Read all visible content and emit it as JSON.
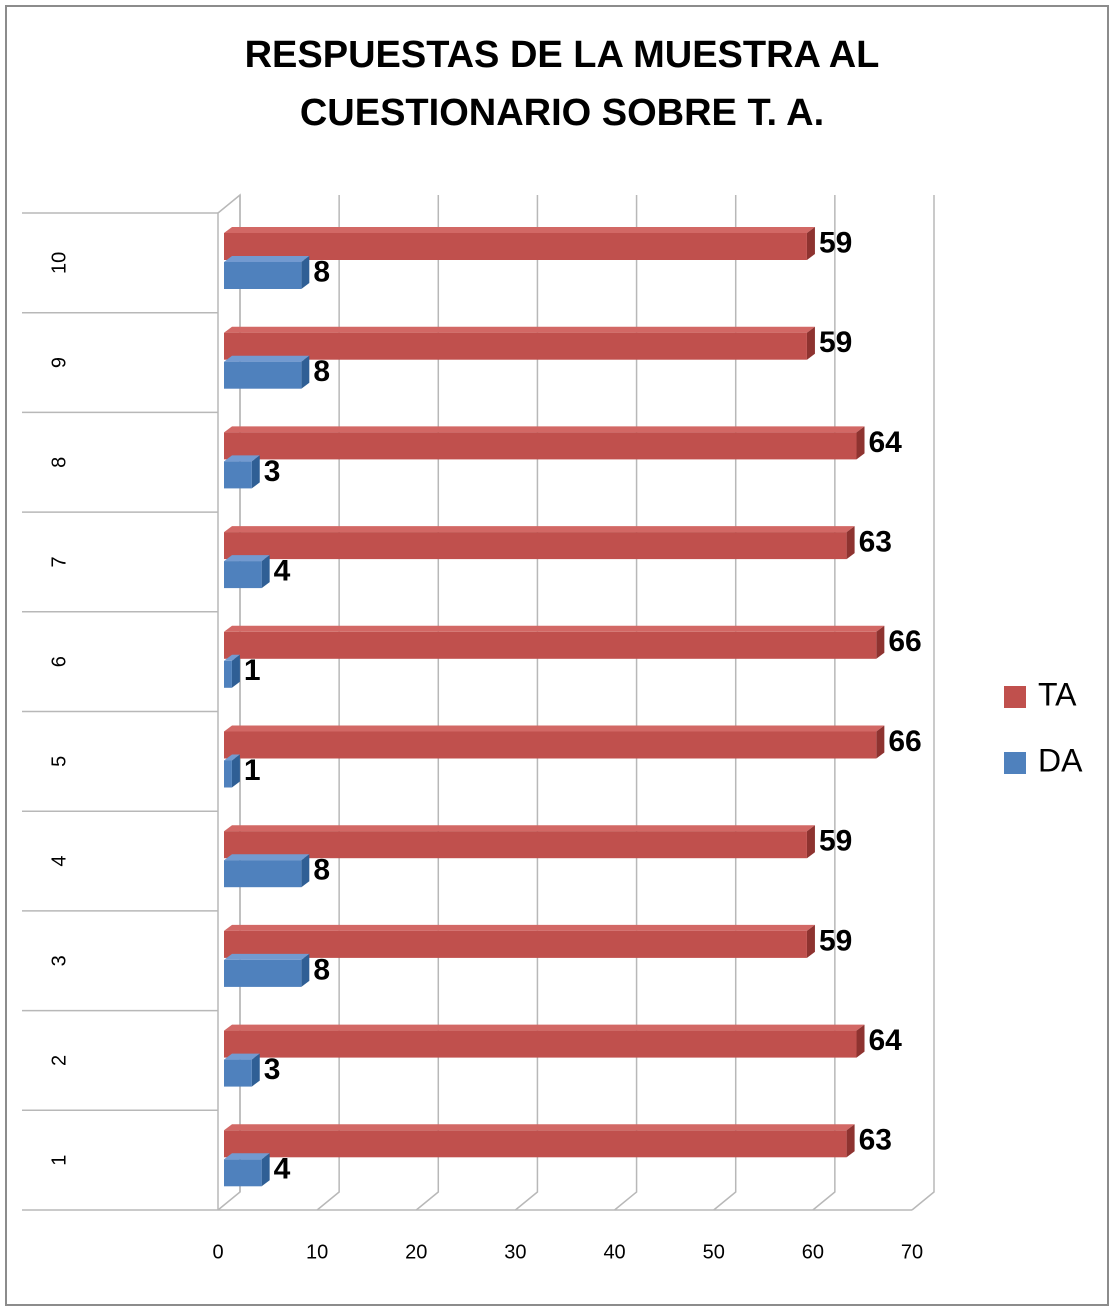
{
  "chart_data": {
    "type": "bar",
    "orientation": "horizontal",
    "title": [
      "RESPUESTAS DE LA MUESTRA AL",
      "CUESTIONARIO SOBRE T. A."
    ],
    "categories": [
      "1",
      "2",
      "3",
      "4",
      "5",
      "6",
      "7",
      "8",
      "9",
      "10"
    ],
    "series": [
      {
        "name": "TA",
        "color": "#c0504d",
        "values": [
          63,
          64,
          59,
          59,
          66,
          66,
          63,
          64,
          59,
          59
        ]
      },
      {
        "name": "DA",
        "color": "#4f81bd",
        "values": [
          4,
          3,
          8,
          8,
          1,
          1,
          4,
          3,
          8,
          8
        ]
      }
    ],
    "xlim": [
      0,
      70
    ],
    "xticks": [
      0,
      10,
      20,
      30,
      40,
      50,
      60,
      70
    ],
    "grid": true,
    "legend": "right"
  }
}
